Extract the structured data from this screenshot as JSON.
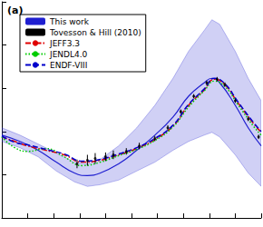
{
  "chart_data": {
    "type": "line",
    "title": "(a)",
    "xlim": [
      0,
      100
    ],
    "xticks": [
      0,
      10,
      20,
      30,
      40,
      50,
      60,
      70,
      80,
      90,
      100
    ],
    "ylim": [
      0,
      100
    ],
    "yticks": [
      0,
      20,
      40,
      60,
      80,
      100
    ],
    "tick_labels": false,
    "grid": false,
    "legend": "upper left",
    "series": [
      {
        "name": "This work",
        "type": "band",
        "color": "#1f1fd0",
        "line_style": "solid",
        "x": [
          0,
          7,
          14,
          21,
          28,
          33,
          38,
          45,
          52,
          59,
          66,
          72,
          78,
          81,
          84,
          90,
          95,
          100
        ],
        "values": [
          38.3,
          35.4,
          31.3,
          25.8,
          20.8,
          19.6,
          20.8,
          25,
          31.3,
          38.3,
          46.7,
          56.3,
          62.5,
          64.6,
          62.5,
          52.1,
          41.7,
          33.3
        ],
        "lower": [
          35.4,
          32.5,
          28.3,
          21.7,
          16.7,
          14.6,
          15.4,
          17.5,
          21.7,
          25.8,
          31.3,
          35.4,
          38.3,
          39.6,
          37.5,
          29.2,
          20.8,
          14.6
        ],
        "upper": [
          41.7,
          38.3,
          34.2,
          30,
          25.8,
          25,
          27.1,
          33.3,
          41.7,
          52.1,
          64.6,
          77.1,
          86.7,
          91.7,
          89.6,
          77.1,
          64.6,
          54.2
        ]
      },
      {
        "name": "Tovesson & Hill (2010)",
        "type": "scatter",
        "color": "#000000",
        "marker": "circle",
        "x": [
          29,
          33,
          36,
          40,
          43,
          48,
          53,
          59,
          64,
          69,
          74,
          79,
          83,
          86,
          90,
          95,
          99
        ],
        "values": [
          25,
          26.7,
          27.5,
          28.3,
          29.2,
          30.8,
          33.3,
          36.7,
          41.7,
          49.2,
          56.3,
          62.5,
          64.2,
          61.7,
          54.2,
          45.8,
          37.5
        ],
        "errors": [
          2,
          2.5,
          2.5,
          2,
          2,
          1.5,
          1.5,
          1.2,
          1.2,
          1,
          1,
          1,
          1,
          1,
          1,
          1,
          1
        ]
      },
      {
        "name": "JEFF3.3",
        "type": "line",
        "color": "#e00000",
        "line_style": "dashdot",
        "x": [
          0,
          5,
          10,
          17,
          24,
          31,
          38,
          45,
          52,
          59,
          66,
          72,
          78,
          82,
          86,
          91,
          97,
          100
        ],
        "values": [
          37.5,
          35.4,
          33.3,
          31.3,
          29.2,
          25.8,
          26.7,
          29.2,
          32.1,
          36.3,
          42.5,
          52.1,
          59.2,
          64.2,
          61.7,
          53.3,
          43.8,
          39.6
        ]
      },
      {
        "name": "JENDL4.0",
        "type": "line",
        "color": "#00cc00",
        "line_style": "dotted",
        "x": [
          0,
          5,
          10,
          17,
          24,
          31,
          38,
          45,
          52,
          59,
          66,
          72,
          78,
          82,
          86,
          91,
          97,
          100
        ],
        "values": [
          37.5,
          32.5,
          30.8,
          32.1,
          28.3,
          24.2,
          25.8,
          28.8,
          31.7,
          35.8,
          42.1,
          51.3,
          58.8,
          63.3,
          60.8,
          52.5,
          42.5,
          38.3
        ]
      },
      {
        "name": "ENDF-VIII",
        "type": "line",
        "color": "#0000cc",
        "line_style": "dashed",
        "x": [
          0,
          5,
          10,
          17,
          24,
          31,
          38,
          45,
          52,
          59,
          66,
          72,
          78,
          82,
          86,
          91,
          97,
          100
        ],
        "values": [
          37.9,
          35,
          33.8,
          31.7,
          29.6,
          26.3,
          27.1,
          29.6,
          32.5,
          36.7,
          42.9,
          52.5,
          59.6,
          64.6,
          62.1,
          53.8,
          44.2,
          40
        ]
      }
    ]
  }
}
